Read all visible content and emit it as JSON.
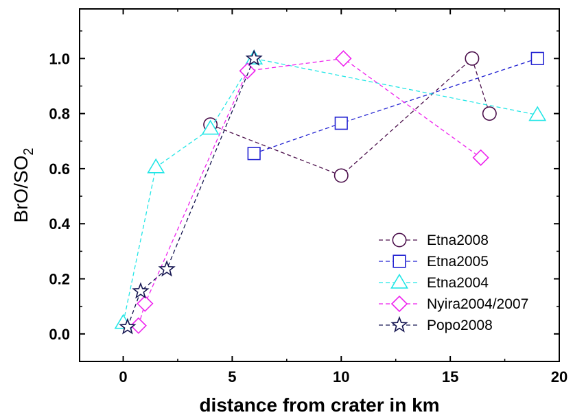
{
  "chart_data": {
    "type": "scatter",
    "xlabel": "distance from crater in km",
    "ylabel_main": "BrO/SO",
    "ylabel_sub": "2",
    "xlim": [
      -2,
      20
    ],
    "ylim": [
      -0.1,
      1.18
    ],
    "xticks": [
      0,
      5,
      10,
      15,
      20
    ],
    "xtick_labels": [
      "0",
      "5",
      "10",
      "15",
      "20"
    ],
    "yticks": [
      0.0,
      0.2,
      0.4,
      0.6,
      0.8,
      1.0
    ],
    "ytick_labels": [
      "0.0",
      "0.2",
      "0.4",
      "0.6",
      "0.8",
      "1.0"
    ],
    "grid": false,
    "legend_position": "bottom-right",
    "series": [
      {
        "name": "Etna2008",
        "marker": "circle",
        "color": "#4b0f4b",
        "x": [
          4.0,
          10.0,
          16.0,
          16.8
        ],
        "y": [
          0.76,
          0.575,
          1.0,
          0.8
        ]
      },
      {
        "name": "Etna2005",
        "marker": "square",
        "color": "#2323d2",
        "x": [
          6.0,
          10.0,
          19.0
        ],
        "y": [
          0.655,
          0.765,
          1.0
        ]
      },
      {
        "name": "Etna2004",
        "marker": "triangle",
        "color": "#22e6e6",
        "x": [
          0.0,
          1.5,
          4.0,
          6.0,
          19.0
        ],
        "y": [
          0.04,
          0.605,
          0.745,
          1.0,
          0.795
        ]
      },
      {
        "name": "Nyira2004/2007",
        "marker": "diamond",
        "color": "#ee22ee",
        "x": [
          0.7,
          1.0,
          5.7,
          10.1,
          16.4
        ],
        "y": [
          0.03,
          0.11,
          0.955,
          1.0,
          0.64
        ]
      },
      {
        "name": "Popo2008",
        "marker": "star",
        "color": "#141450",
        "x": [
          0.2,
          0.8,
          2.0,
          6.0
        ],
        "y": [
          0.025,
          0.155,
          0.235,
          1.0
        ]
      }
    ]
  }
}
